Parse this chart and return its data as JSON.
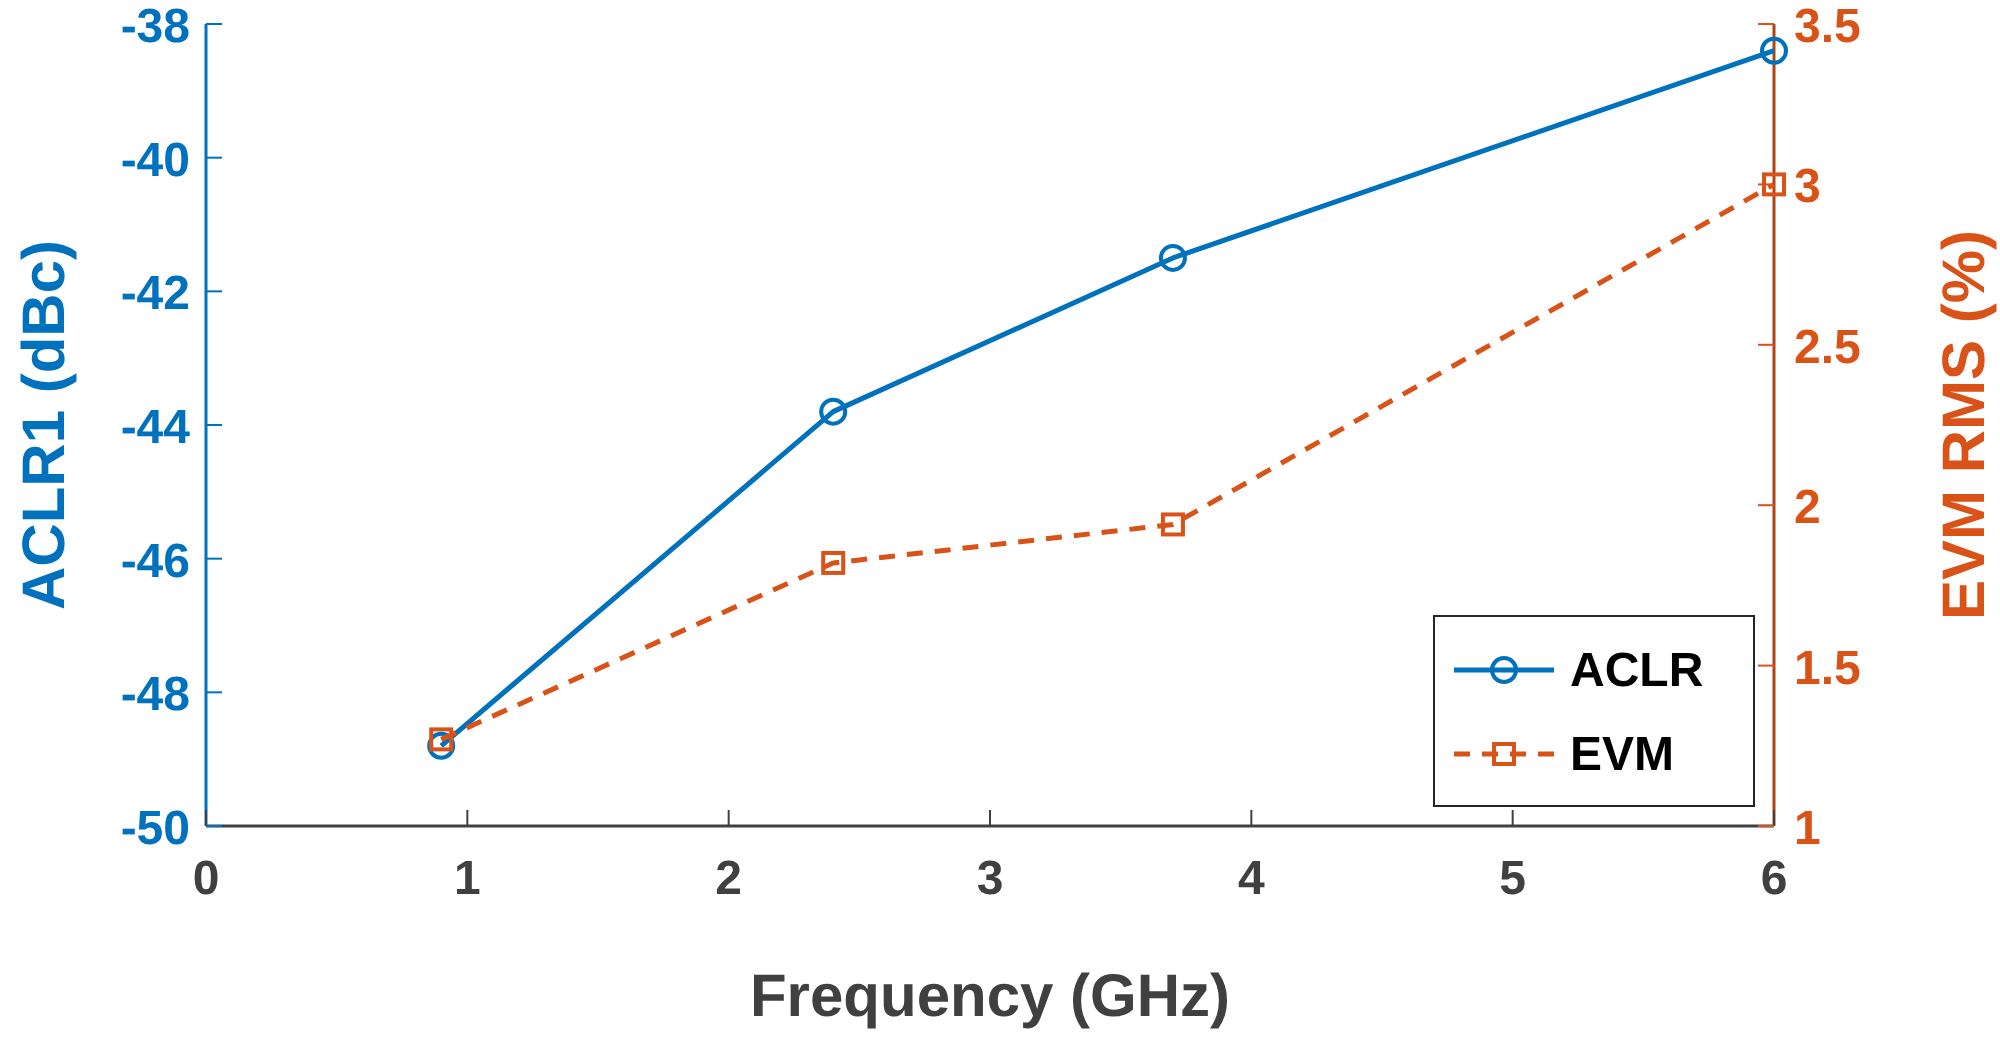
{
  "chart_data": {
    "type": "line",
    "xlabel": "Frequency (GHz)",
    "ylabel": "ACLR1 (dBc)",
    "y2label": "EVM RMS (%)",
    "x": [
      0.9,
      2.4,
      3.7,
      6
    ],
    "series": [
      {
        "name": "ACLR",
        "color": "#0072bd",
        "values": [
          -48.8,
          -43.8,
          -41.5,
          -38.4
        ],
        "marker": "circle",
        "line_style": "solid"
      },
      {
        "name": "EVM",
        "color": "#d95319",
        "values": [
          1.27,
          1.82,
          1.94,
          3.0
        ],
        "marker": "square",
        "line_style": "dashed",
        "axis": "y2"
      }
    ],
    "xlim": [
      0,
      6
    ],
    "xticks": [
      0,
      1,
      2,
      3,
      4,
      5,
      6
    ],
    "ylim": [
      -50,
      -38
    ],
    "yticks": [
      -50,
      -48,
      -46,
      -44,
      -42,
      -40,
      -38
    ],
    "y2lim": [
      1,
      3.5
    ],
    "y2ticks": [
      1,
      1.5,
      2,
      2.5,
      3,
      3.5
    ],
    "legend": "bottom right",
    "grid": false
  }
}
